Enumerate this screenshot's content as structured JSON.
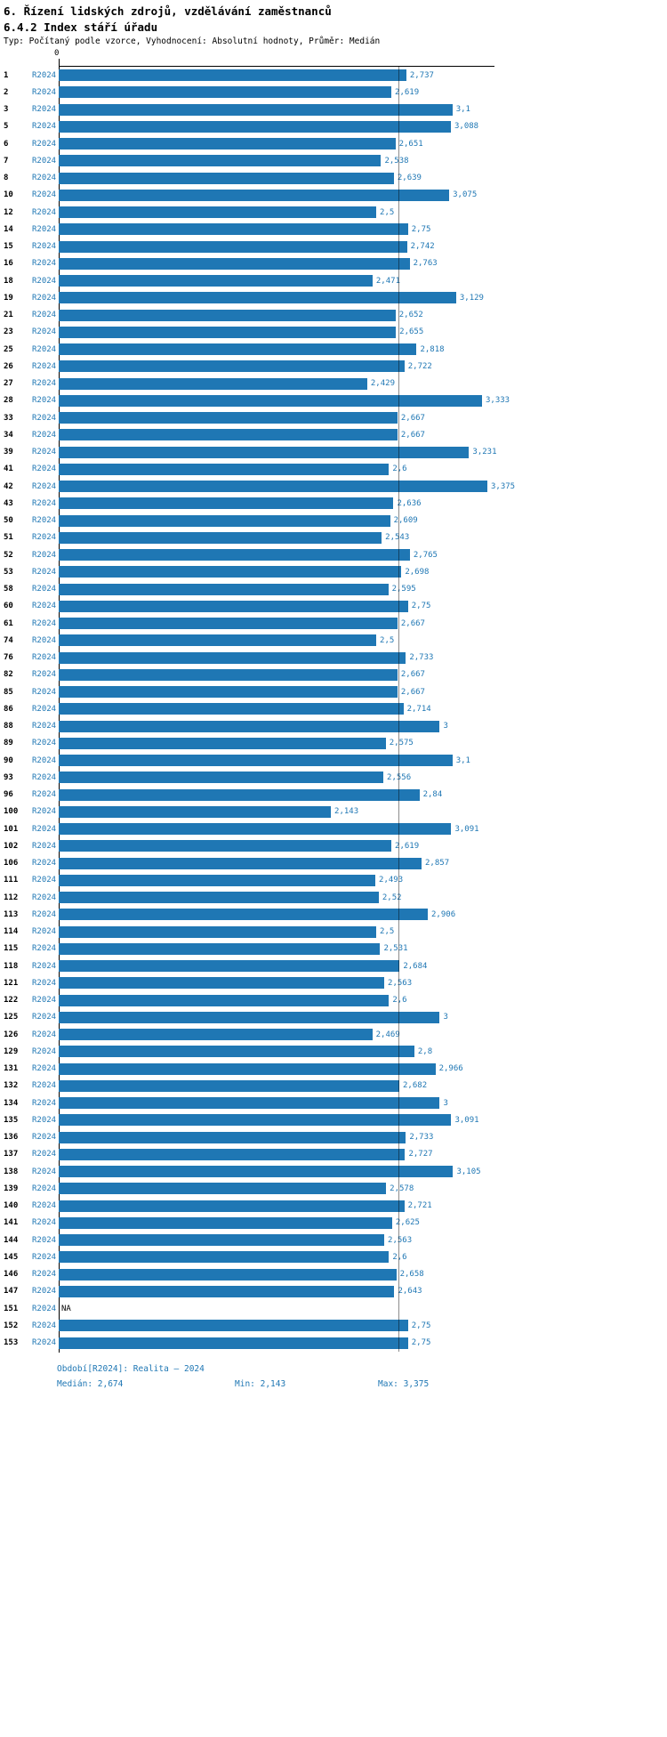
{
  "header": {
    "title1": "6. Řízení lidských zdrojů, vzdělávání zaměstnanců",
    "title2": "6.4.2 Index stáří úřadu",
    "subtitle": "Typ: Počítaný podle vzorce, Vyhodnocení: Absolutní hodnoty, Průměr: Medián"
  },
  "axis": {
    "zero_label": "0"
  },
  "footer": {
    "period": "Období[R2024]: Realita – 2024",
    "median": "Medián: 2,674",
    "min": "Min: 2,143",
    "max": "Max: 3,375"
  },
  "colors": {
    "bar": "#1f77b4",
    "label_blue": "#1f77b4",
    "axis": "#000000"
  },
  "chart_data": {
    "type": "bar",
    "orientation": "horizontal",
    "series_label": "R2024",
    "value_max": 3.375,
    "median": 2.674,
    "min": 2.143,
    "max": 3.375,
    "na_text": "NA",
    "rows": [
      {
        "id": "1",
        "period": "R2024",
        "value": 2.737,
        "label": "2,737"
      },
      {
        "id": "2",
        "period": "R2024",
        "value": 2.619,
        "label": "2,619"
      },
      {
        "id": "3",
        "period": "R2024",
        "value": 3.1,
        "label": "3,1"
      },
      {
        "id": "5",
        "period": "R2024",
        "value": 3.088,
        "label": "3,088"
      },
      {
        "id": "6",
        "period": "R2024",
        "value": 2.651,
        "label": "2,651"
      },
      {
        "id": "7",
        "period": "R2024",
        "value": 2.538,
        "label": "2,538"
      },
      {
        "id": "8",
        "period": "R2024",
        "value": 2.639,
        "label": "2,639"
      },
      {
        "id": "10",
        "period": "R2024",
        "value": 3.075,
        "label": "3,075"
      },
      {
        "id": "12",
        "period": "R2024",
        "value": 2.5,
        "label": "2,5"
      },
      {
        "id": "14",
        "period": "R2024",
        "value": 2.75,
        "label": "2,75"
      },
      {
        "id": "15",
        "period": "R2024",
        "value": 2.742,
        "label": "2,742"
      },
      {
        "id": "16",
        "period": "R2024",
        "value": 2.763,
        "label": "2,763"
      },
      {
        "id": "18",
        "period": "R2024",
        "value": 2.471,
        "label": "2,471"
      },
      {
        "id": "19",
        "period": "R2024",
        "value": 3.129,
        "label": "3,129"
      },
      {
        "id": "21",
        "period": "R2024",
        "value": 2.652,
        "label": "2,652"
      },
      {
        "id": "23",
        "period": "R2024",
        "value": 2.655,
        "label": "2,655"
      },
      {
        "id": "25",
        "period": "R2024",
        "value": 2.818,
        "label": "2,818"
      },
      {
        "id": "26",
        "period": "R2024",
        "value": 2.722,
        "label": "2,722"
      },
      {
        "id": "27",
        "period": "R2024",
        "value": 2.429,
        "label": "2,429"
      },
      {
        "id": "28",
        "period": "R2024",
        "value": 3.333,
        "label": "3,333"
      },
      {
        "id": "33",
        "period": "R2024",
        "value": 2.667,
        "label": "2,667"
      },
      {
        "id": "34",
        "period": "R2024",
        "value": 2.667,
        "label": "2,667"
      },
      {
        "id": "39",
        "period": "R2024",
        "value": 3.231,
        "label": "3,231"
      },
      {
        "id": "41",
        "period": "R2024",
        "value": 2.6,
        "label": "2,6"
      },
      {
        "id": "42",
        "period": "R2024",
        "value": 3.375,
        "label": "3,375"
      },
      {
        "id": "43",
        "period": "R2024",
        "value": 2.636,
        "label": "2,636"
      },
      {
        "id": "50",
        "period": "R2024",
        "value": 2.609,
        "label": "2,609"
      },
      {
        "id": "51",
        "period": "R2024",
        "value": 2.543,
        "label": "2,543"
      },
      {
        "id": "52",
        "period": "R2024",
        "value": 2.765,
        "label": "2,765"
      },
      {
        "id": "53",
        "period": "R2024",
        "value": 2.698,
        "label": "2,698"
      },
      {
        "id": "58",
        "period": "R2024",
        "value": 2.595,
        "label": "2,595"
      },
      {
        "id": "60",
        "period": "R2024",
        "value": 2.75,
        "label": "2,75"
      },
      {
        "id": "61",
        "period": "R2024",
        "value": 2.667,
        "label": "2,667"
      },
      {
        "id": "74",
        "period": "R2024",
        "value": 2.5,
        "label": "2,5"
      },
      {
        "id": "76",
        "period": "R2024",
        "value": 2.733,
        "label": "2,733"
      },
      {
        "id": "82",
        "period": "R2024",
        "value": 2.667,
        "label": "2,667"
      },
      {
        "id": "85",
        "period": "R2024",
        "value": 2.667,
        "label": "2,667"
      },
      {
        "id": "86",
        "period": "R2024",
        "value": 2.714,
        "label": "2,714"
      },
      {
        "id": "88",
        "period": "R2024",
        "value": 3.0,
        "label": "3"
      },
      {
        "id": "89",
        "period": "R2024",
        "value": 2.575,
        "label": "2,575"
      },
      {
        "id": "90",
        "period": "R2024",
        "value": 3.1,
        "label": "3,1"
      },
      {
        "id": "93",
        "period": "R2024",
        "value": 2.556,
        "label": "2,556"
      },
      {
        "id": "96",
        "period": "R2024",
        "value": 2.84,
        "label": "2,84"
      },
      {
        "id": "100",
        "period": "R2024",
        "value": 2.143,
        "label": "2,143"
      },
      {
        "id": "101",
        "period": "R2024",
        "value": 3.091,
        "label": "3,091"
      },
      {
        "id": "102",
        "period": "R2024",
        "value": 2.619,
        "label": "2,619"
      },
      {
        "id": "106",
        "period": "R2024",
        "value": 2.857,
        "label": "2,857"
      },
      {
        "id": "111",
        "period": "R2024",
        "value": 2.493,
        "label": "2,493"
      },
      {
        "id": "112",
        "period": "R2024",
        "value": 2.52,
        "label": "2,52"
      },
      {
        "id": "113",
        "period": "R2024",
        "value": 2.906,
        "label": "2,906"
      },
      {
        "id": "114",
        "period": "R2024",
        "value": 2.5,
        "label": "2,5"
      },
      {
        "id": "115",
        "period": "R2024",
        "value": 2.531,
        "label": "2,531"
      },
      {
        "id": "118",
        "period": "R2024",
        "value": 2.684,
        "label": "2,684"
      },
      {
        "id": "121",
        "period": "R2024",
        "value": 2.563,
        "label": "2,563"
      },
      {
        "id": "122",
        "period": "R2024",
        "value": 2.6,
        "label": "2,6"
      },
      {
        "id": "125",
        "period": "R2024",
        "value": 3.0,
        "label": "3"
      },
      {
        "id": "126",
        "period": "R2024",
        "value": 2.469,
        "label": "2,469"
      },
      {
        "id": "129",
        "period": "R2024",
        "value": 2.8,
        "label": "2,8"
      },
      {
        "id": "131",
        "period": "R2024",
        "value": 2.966,
        "label": "2,966"
      },
      {
        "id": "132",
        "period": "R2024",
        "value": 2.682,
        "label": "2,682"
      },
      {
        "id": "134",
        "period": "R2024",
        "value": 3.0,
        "label": "3"
      },
      {
        "id": "135",
        "period": "R2024",
        "value": 3.091,
        "label": "3,091"
      },
      {
        "id": "136",
        "period": "R2024",
        "value": 2.733,
        "label": "2,733"
      },
      {
        "id": "137",
        "period": "R2024",
        "value": 2.727,
        "label": "2,727"
      },
      {
        "id": "138",
        "period": "R2024",
        "value": 3.105,
        "label": "3,105"
      },
      {
        "id": "139",
        "period": "R2024",
        "value": 2.578,
        "label": "2,578"
      },
      {
        "id": "140",
        "period": "R2024",
        "value": 2.721,
        "label": "2,721"
      },
      {
        "id": "141",
        "period": "R2024",
        "value": 2.625,
        "label": "2,625"
      },
      {
        "id": "144",
        "period": "R2024",
        "value": 2.563,
        "label": "2,563"
      },
      {
        "id": "145",
        "period": "R2024",
        "value": 2.6,
        "label": "2,6"
      },
      {
        "id": "146",
        "period": "R2024",
        "value": 2.658,
        "label": "2,658"
      },
      {
        "id": "147",
        "period": "R2024",
        "value": 2.643,
        "label": "2,643"
      },
      {
        "id": "151",
        "period": "R2024",
        "value": null,
        "label": "NA"
      },
      {
        "id": "152",
        "period": "R2024",
        "value": 2.75,
        "label": "2,75"
      },
      {
        "id": "153",
        "period": "R2024",
        "value": 2.75,
        "label": "2,75"
      }
    ]
  }
}
